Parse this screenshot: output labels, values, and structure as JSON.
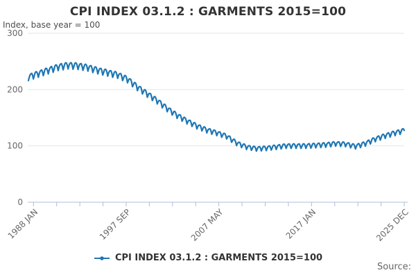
{
  "header": {
    "title": "CPI INDEX 03.1.2 : GARMENTS 2015=100",
    "subtitle": "Index, base year = 100"
  },
  "legend": {
    "label": "CPI INDEX 03.1.2 : GARMENTS 2015=100"
  },
  "source_label": "Source:",
  "colors": {
    "line": "#1f77b4",
    "grid": "#e6e6e6",
    "axis": "#aebcd8",
    "tick_text": "#666666"
  },
  "chart_data": {
    "type": "line",
    "title": "CPI INDEX 03.1.2 : GARMENTS 2015=100",
    "ylabel": "Index, base year = 100",
    "xlabel": "",
    "ylim": [
      0,
      300
    ],
    "yticks": [
      0,
      100,
      200,
      300
    ],
    "grid": true,
    "legend_position": "bottom",
    "x_minor_tick_count": 17,
    "xtick_labels": [
      "1988 JAN",
      "1997 SEP",
      "2007 MAY",
      "2017 JAN",
      "2025 DEC"
    ],
    "xtick_label_positions": [
      0,
      4,
      8,
      12,
      16
    ],
    "x_range": {
      "start": "1988 JAN",
      "end": "2025 DEC",
      "points": 456,
      "interval": "monthly"
    },
    "series": [
      {
        "name": "CPI INDEX 03.1.2 : GARMENTS 2015=100",
        "annual_years": [
          1988,
          1989,
          1990,
          1991,
          1992,
          1993,
          1994,
          1995,
          1996,
          1997,
          1998,
          1999,
          2000,
          2001,
          2002,
          2003,
          2004,
          2005,
          2006,
          2007,
          2008,
          2009,
          2010,
          2011,
          2012,
          2013,
          2014,
          2015,
          2016,
          2017,
          2018,
          2019,
          2020,
          2021,
          2022,
          2023,
          2024,
          2025
        ],
        "january_values": [
          222,
          228,
          234,
          240,
          243,
          242,
          239,
          234,
          230,
          226,
          218,
          204,
          192,
          180,
          166,
          154,
          144,
          135,
          128,
          123,
          117,
          105,
          98,
          95,
          96,
          98,
          100,
          100,
          100,
          101,
          102,
          104,
          103,
          99,
          104,
          112,
          118,
          123
        ],
        "end_value_dec_2025": 127,
        "seasonal_offsets": [
          -0.9,
          -0.1,
          0.45,
          0.65,
          0.7,
          0.1,
          -0.9,
          -0.25,
          0.5,
          0.75,
          0.65,
          0.1
        ],
        "seasonal_amplitude": {
          "base": 3.5,
          "per_unit_of_level": 0.015
        }
      }
    ]
  }
}
